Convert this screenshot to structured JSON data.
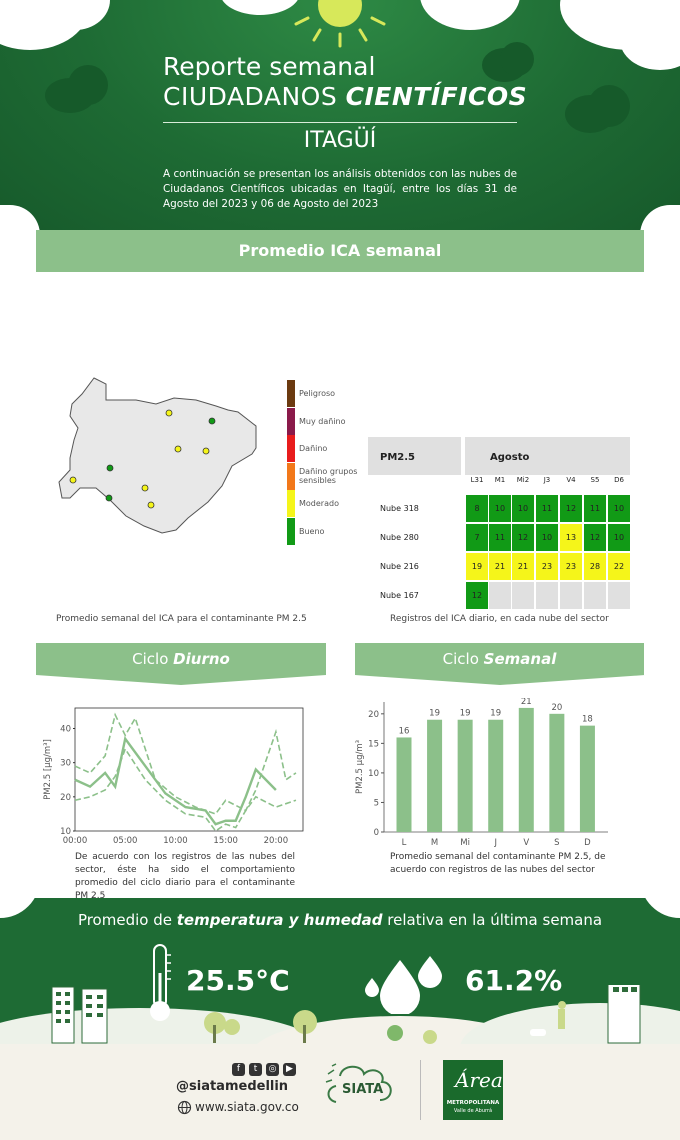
{
  "header": {
    "title_line1": "Reporte semanal",
    "title_line2_prefix": "CIUDADANOS ",
    "title_line2_emph": "CIENTÍFICOS",
    "city": "ITAGÜÍ",
    "intro": "A continuación se presentan los análisis obtenidos con las nubes de Ciudadanos Científicos ubicadas en Itagüí, entre los días 31 de Agosto del 2023 y 06 de Agosto del 2023"
  },
  "section_ica": {
    "banner": "Promedio ICA semanal",
    "legend": [
      {
        "label": "Peligroso",
        "color": "#6b3a10"
      },
      {
        "label": "Muy dañino",
        "color": "#8a1a4a"
      },
      {
        "label": "Dañino",
        "color": "#e81c1c"
      },
      {
        "label": "Dañino grupos sensibles",
        "color": "#f2781a"
      },
      {
        "label": "Moderado",
        "color": "#f5f51a"
      },
      {
        "label": "Bueno",
        "color": "#119a16"
      }
    ],
    "map_caption": "Promedio semanal del ICA para el contaminante PM 2.5",
    "map_points": [
      {
        "color": "#f5f51a"
      },
      {
        "color": "#119a16"
      },
      {
        "color": "#f5f51a"
      },
      {
        "color": "#f5f51a"
      },
      {
        "color": "#119a16"
      },
      {
        "color": "#f5f51a"
      },
      {
        "color": "#f5f51a"
      },
      {
        "color": "#119a16"
      },
      {
        "color": "#f5f51a"
      }
    ]
  },
  "ica_table": {
    "pollutant": "PM2.5",
    "month": "Agosto",
    "days": [
      "L31",
      "M1",
      "Mi2",
      "J3",
      "V4",
      "S5",
      "D6"
    ],
    "rows": [
      {
        "name": "Nube 318",
        "values": [
          "8",
          "10",
          "10",
          "11",
          "12",
          "11",
          "10"
        ],
        "levels": [
          "g",
          "g",
          "g",
          "g",
          "g",
          "g",
          "g"
        ]
      },
      {
        "name": "Nube 280",
        "values": [
          "7",
          "11",
          "12",
          "10",
          "13",
          "12",
          "10"
        ],
        "levels": [
          "g",
          "g",
          "g",
          "g",
          "y",
          "g",
          "g"
        ]
      },
      {
        "name": "Nube 216",
        "values": [
          "19",
          "21",
          "21",
          "23",
          "23",
          "28",
          "22"
        ],
        "levels": [
          "y",
          "y",
          "y",
          "y",
          "y",
          "y",
          "y"
        ]
      },
      {
        "name": "Nube 167",
        "values": [
          "12",
          "",
          "",
          "",
          "",
          "",
          ""
        ],
        "levels": [
          "g",
          "e",
          "e",
          "e",
          "e",
          "e",
          "e"
        ]
      }
    ],
    "caption": "Registros del ICA diario, en cada nube del sector"
  },
  "ciclo_diurno": {
    "banner_prefix": "Ciclo ",
    "banner_emph": "Diurno",
    "description": "De acuerdo con los registros de las nubes del sector, éste ha sido el comportamiento promedio del ciclo diario para el contaminante PM 2.5"
  },
  "ciclo_semanal": {
    "banner_prefix": "Ciclo ",
    "banner_emph": "Semanal",
    "description": "Promedio semanal del contaminante PM 2.5, de acuerdo con registros de las nubes del sector"
  },
  "chart_data": [
    {
      "type": "line",
      "ylabel": "PM2.5 [µg/m³]",
      "xlabel": "",
      "x_tick_labels": [
        "00:00",
        "05:00",
        "10:00",
        "15:00",
        "20:00"
      ],
      "x": [
        0,
        2,
        4,
        6,
        8,
        10,
        12,
        14,
        16,
        18,
        20,
        22
      ],
      "ylim": [
        10,
        46
      ],
      "yticks": [
        10,
        20,
        30,
        40
      ],
      "series": [
        {
          "values": [
            25,
            23,
            27,
            23,
            37,
            29,
            21,
            17,
            16,
            12,
            13,
            13,
            20,
            28,
            22
          ],
          "x": [
            0,
            1.5,
            3,
            4,
            5,
            7,
            9,
            11,
            13,
            14,
            15,
            16,
            17,
            18,
            20
          ],
          "style": "solid"
        },
        {
          "values": [
            29,
            27,
            32,
            44,
            38,
            43,
            25,
            20,
            17,
            15,
            19,
            16,
            22,
            39,
            25,
            27
          ],
          "x": [
            0,
            1.5,
            3,
            4,
            5,
            6,
            8,
            10,
            12,
            14,
            15,
            17,
            18,
            20,
            21,
            22
          ],
          "style": "dashed"
        },
        {
          "values": [
            19,
            20,
            22,
            26,
            34,
            25,
            19,
            15,
            14,
            10,
            12,
            11,
            16,
            20,
            17,
            19
          ],
          "x": [
            0,
            1.5,
            3,
            4,
            5,
            7,
            9,
            11,
            13,
            14,
            15,
            16,
            17,
            18,
            20,
            22
          ],
          "style": "dashed"
        }
      ]
    },
    {
      "type": "bar",
      "ylabel": "PM2.5 µg/m³",
      "xlabel": "",
      "categories": [
        "L",
        "M",
        "Mi",
        "J",
        "V",
        "S",
        "D"
      ],
      "values": [
        16,
        19,
        19,
        19,
        21,
        20,
        18
      ],
      "ylim": [
        0,
        22
      ],
      "yticks": [
        0,
        5,
        10,
        15,
        20
      ]
    }
  ],
  "bottom": {
    "title_prefix": "Promedio de ",
    "title_emph": "temperatura y humedad",
    "title_suffix": " relativa en la última semana",
    "temperature": "25.5°C",
    "humidity": "61.2%"
  },
  "footer": {
    "handle": "@siatamedellin",
    "website": "www.siata.gov.co",
    "siata": "SIATA",
    "area_script": "Área",
    "area_name": "METROPOLITANA",
    "area_sub": "Valle de Aburrá"
  }
}
